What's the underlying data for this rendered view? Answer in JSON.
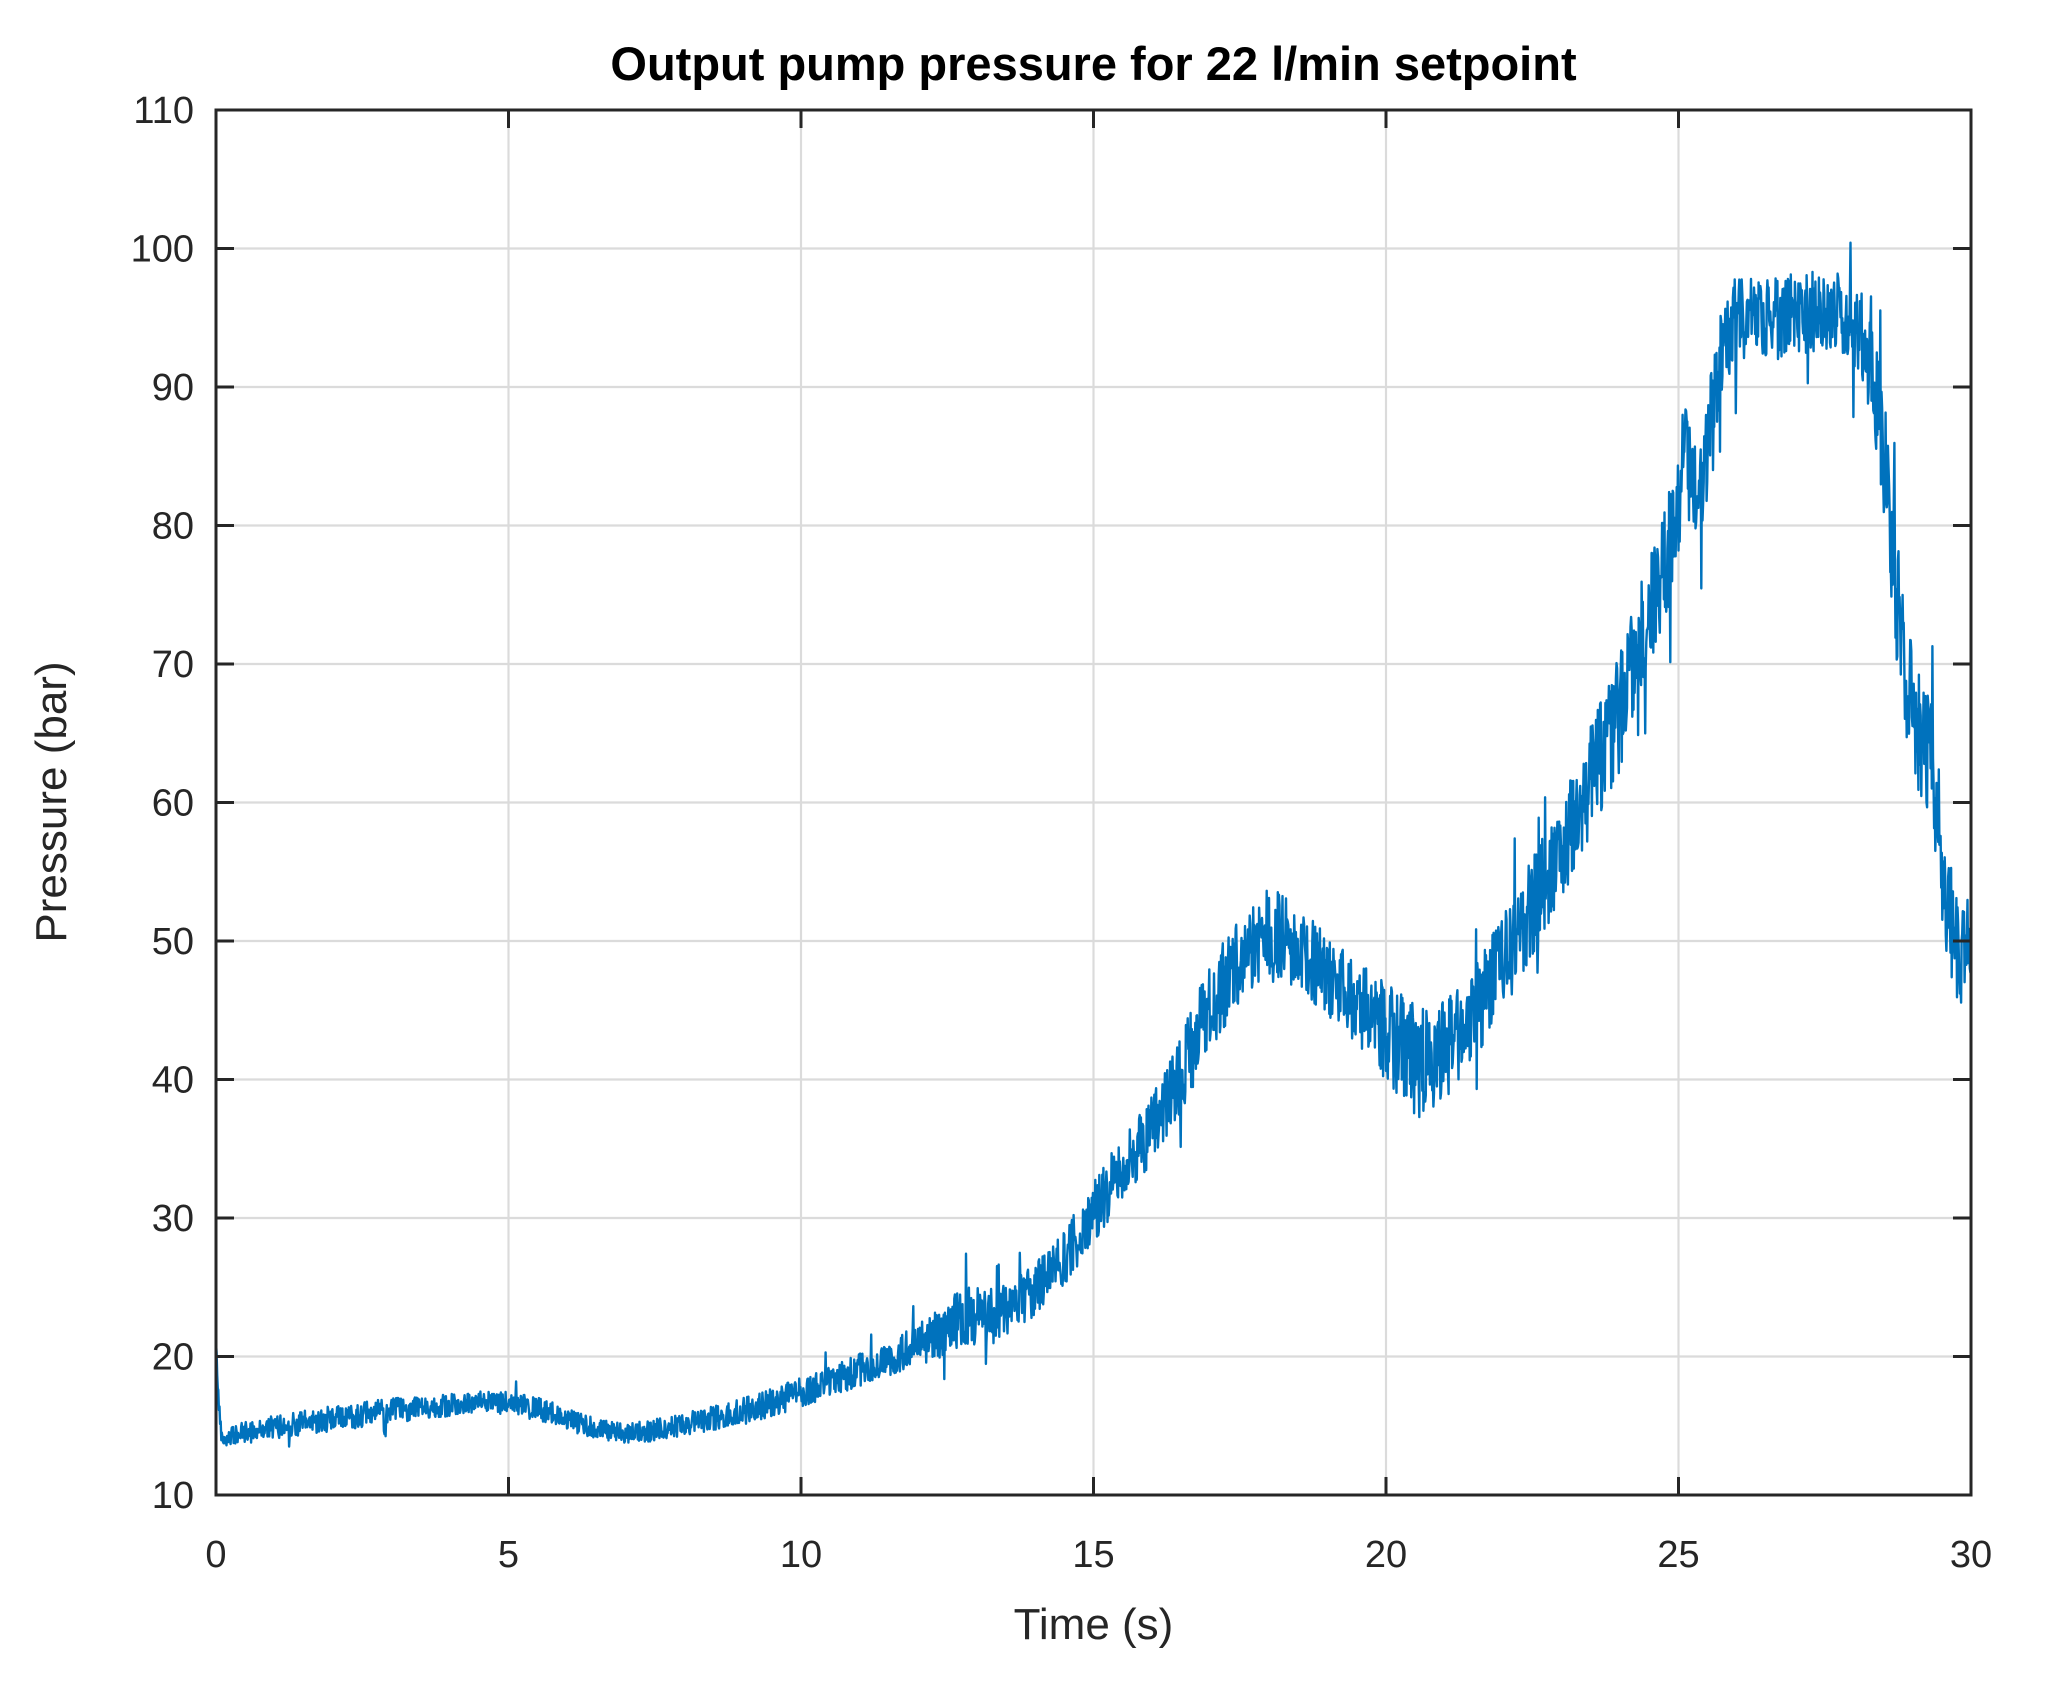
{
  "chart_data": {
    "type": "line",
    "title": "Output pump pressure for 22 l/min setpoint",
    "xlabel": "Time (s)",
    "ylabel": "Pressure (bar)",
    "xlim": [
      0,
      30
    ],
    "ylim": [
      10,
      110
    ],
    "xticks": [
      0,
      5,
      10,
      15,
      20,
      25,
      30
    ],
    "yticks": [
      10,
      20,
      30,
      40,
      50,
      60,
      70,
      80,
      90,
      100,
      110
    ],
    "grid": true,
    "legend_position": "none",
    "colors": {
      "line": "#0072BD",
      "axis": "#262626",
      "grid": "#DBDBDB",
      "background": "#FFFFFF",
      "title": "#000000"
    },
    "series": [
      {
        "name": "pump pressure",
        "color": "#0072BD",
        "description_points": "trend read from figure as [time_s, mean_bar, noise_halfwidth_bar]",
        "trend": [
          [
            0.0,
            21.0,
            0.3
          ],
          [
            0.04,
            17.0,
            0.8
          ],
          [
            0.1,
            14.1,
            0.6
          ],
          [
            0.5,
            14.5,
            0.8
          ],
          [
            1.0,
            14.9,
            0.85
          ],
          [
            1.5,
            15.2,
            0.9
          ],
          [
            2.0,
            15.5,
            0.95
          ],
          [
            2.5,
            15.8,
            0.9
          ],
          [
            3.0,
            16.1,
            0.9
          ],
          [
            3.5,
            16.3,
            0.85
          ],
          [
            4.0,
            16.5,
            0.8
          ],
          [
            4.5,
            16.7,
            0.8
          ],
          [
            5.0,
            16.6,
            0.85
          ],
          [
            5.5,
            16.2,
            0.9
          ],
          [
            6.0,
            15.5,
            0.85
          ],
          [
            6.5,
            14.8,
            0.75
          ],
          [
            7.0,
            14.4,
            0.7
          ],
          [
            7.5,
            14.7,
            0.8
          ],
          [
            8.0,
            15.1,
            0.85
          ],
          [
            8.5,
            15.5,
            0.9
          ],
          [
            9.0,
            16.0,
            1.0
          ],
          [
            9.5,
            16.7,
            1.0
          ],
          [
            10.0,
            17.4,
            1.1
          ],
          [
            10.5,
            18.2,
            1.1
          ],
          [
            11.0,
            19.0,
            1.2
          ],
          [
            11.5,
            19.8,
            1.3
          ],
          [
            12.0,
            20.8,
            1.5
          ],
          [
            12.5,
            22.0,
            1.9
          ],
          [
            12.8,
            23.0,
            2.3
          ],
          [
            13.2,
            22.8,
            2.0
          ],
          [
            13.6,
            23.6,
            2.1
          ],
          [
            14.0,
            24.8,
            1.9
          ],
          [
            14.5,
            27.0,
            2.0
          ],
          [
            15.0,
            30.5,
            2.3
          ],
          [
            15.5,
            33.5,
            2.4
          ],
          [
            16.0,
            36.5,
            2.5
          ],
          [
            16.5,
            40.5,
            3.0
          ],
          [
            17.0,
            45.5,
            3.3
          ],
          [
            17.5,
            48.5,
            3.2
          ],
          [
            18.0,
            50.5,
            3.4
          ],
          [
            18.5,
            49.5,
            3.2
          ],
          [
            19.0,
            47.5,
            3.0
          ],
          [
            19.5,
            45.5,
            3.0
          ],
          [
            20.0,
            43.5,
            3.6
          ],
          [
            20.4,
            41.5,
            4.2
          ],
          [
            20.8,
            41.0,
            4.0
          ],
          [
            21.2,
            43.0,
            3.6
          ],
          [
            21.6,
            45.5,
            3.4
          ],
          [
            22.0,
            48.5,
            3.6
          ],
          [
            22.5,
            52.5,
            3.6
          ],
          [
            23.0,
            56.5,
            3.6
          ],
          [
            23.5,
            61.5,
            4.0
          ],
          [
            24.0,
            66.5,
            4.2
          ],
          [
            24.5,
            74.0,
            4.0
          ],
          [
            24.9,
            79.0,
            4.5
          ],
          [
            25.1,
            85.0,
            4.0
          ],
          [
            25.35,
            80.5,
            4.0
          ],
          [
            25.6,
            90.0,
            3.5
          ],
          [
            25.9,
            94.5,
            3.2
          ],
          [
            26.3,
            95.5,
            3.0
          ],
          [
            26.8,
            95.0,
            3.2
          ],
          [
            27.3,
            95.5,
            3.0
          ],
          [
            27.8,
            95.5,
            3.2
          ],
          [
            28.1,
            94.0,
            3.4
          ],
          [
            28.35,
            90.0,
            3.8
          ],
          [
            28.55,
            84.0,
            4.4
          ],
          [
            28.75,
            73.5,
            5.0
          ],
          [
            29.0,
            66.5,
            4.6
          ],
          [
            29.3,
            63.5,
            4.6
          ],
          [
            29.6,
            52.5,
            4.6
          ],
          [
            29.8,
            48.5,
            3.6
          ],
          [
            30.0,
            50.5,
            3.0
          ]
        ],
        "observed_max": 101,
        "observed_min": 13.5
      }
    ]
  }
}
